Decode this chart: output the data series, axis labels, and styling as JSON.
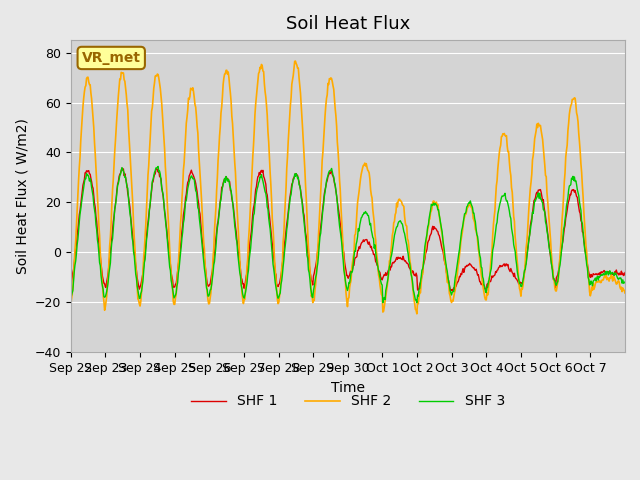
{
  "title": "Soil Heat Flux",
  "xlabel": "Time",
  "ylabel": "Soil Heat Flux ( W/m2)",
  "ylim": [
    -40,
    85
  ],
  "yticks": [
    -40,
    -20,
    0,
    20,
    40,
    60,
    80
  ],
  "background_color": "#e8e8e8",
  "plot_bg_color": "#d4d4d4",
  "line_colors": {
    "SHF 1": "#dd0000",
    "SHF 2": "#ffaa00",
    "SHF 3": "#00cc00"
  },
  "annotation_text": "VR_met",
  "annotation_box_color": "#ffff99",
  "annotation_border_color": "#996600",
  "title_fontsize": 13,
  "axis_fontsize": 10,
  "tick_fontsize": 9,
  "legend_fontsize": 10,
  "day_labels": [
    "Sep 22",
    "Sep 23",
    "Sep 24",
    "Sep 25",
    "Sep 26",
    "Sep 27",
    "Sep 28",
    "Sep 29",
    "Sep 30",
    "Oct 1",
    "Oct 2",
    "Oct 3",
    "Oct 4",
    "Oct 5",
    "Oct 6",
    "Oct 7"
  ],
  "shf1_peaks": [
    33,
    33,
    33,
    32,
    30,
    33,
    31,
    32,
    5,
    -2,
    10,
    -5,
    -5,
    25,
    25,
    -8
  ],
  "shf2_peaks": [
    70,
    72,
    71,
    66,
    73,
    75,
    76,
    70,
    36,
    21,
    20,
    19,
    48,
    51,
    62,
    -10
  ],
  "shf3_peaks": [
    31,
    33,
    34,
    30,
    30,
    30,
    31,
    33,
    16,
    12,
    20,
    20,
    23,
    23,
    30,
    -8
  ],
  "shf1_nights": [
    -13,
    -14,
    -14,
    -14,
    -13,
    -14,
    -13,
    -9,
    -10,
    -10,
    -15,
    -15,
    -13,
    -13,
    -10,
    -9
  ],
  "shf2_nights": [
    -22,
    -22,
    -21,
    -21,
    -21,
    -20,
    -20,
    -20,
    -18,
    -24,
    -20,
    -20,
    -17,
    -16,
    -16,
    -15
  ],
  "shf3_nights": [
    -18,
    -18,
    -18,
    -18,
    -17,
    -18,
    -18,
    -15,
    -13,
    -20,
    -17,
    -16,
    -14,
    -13,
    -13,
    -12
  ]
}
